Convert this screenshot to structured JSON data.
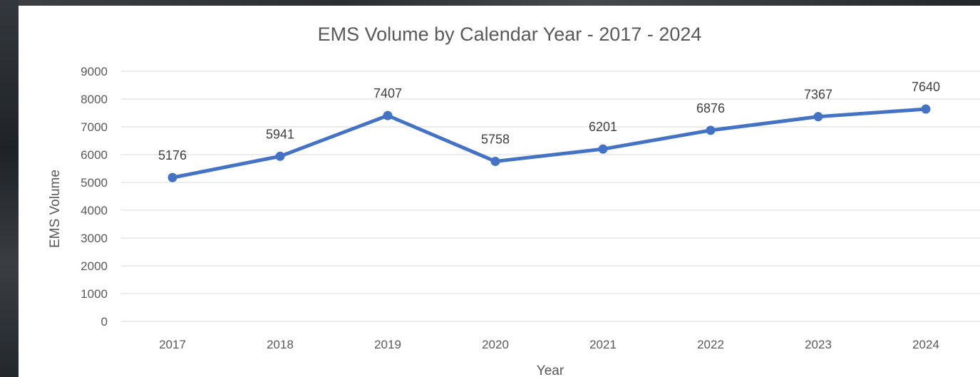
{
  "chart_data": {
    "type": "line",
    "title": "EMS Volume by Calendar Year - 2017 - 2024",
    "xlabel": "Year",
    "ylabel": "EMS Volume",
    "categories": [
      "2017",
      "2018",
      "2019",
      "2020",
      "2021",
      "2022",
      "2023",
      "2024"
    ],
    "series": [
      {
        "values": [
          5176,
          5941,
          7407,
          5758,
          6201,
          6876,
          7367,
          7640
        ],
        "color": "#4472c4"
      }
    ],
    "ylim": [
      0,
      9000
    ],
    "yticks": [
      0,
      1000,
      2000,
      3000,
      4000,
      5000,
      6000,
      7000,
      8000,
      9000
    ],
    "grid": true,
    "data_labels": true
  }
}
